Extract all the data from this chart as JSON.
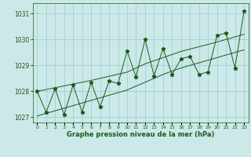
{
  "hours": [
    0,
    1,
    2,
    3,
    4,
    5,
    6,
    7,
    8,
    9,
    10,
    11,
    12,
    13,
    14,
    15,
    16,
    17,
    18,
    19,
    20,
    21,
    22,
    23
  ],
  "pressure": [
    1028.0,
    1027.2,
    1028.1,
    1027.1,
    1028.25,
    1027.2,
    1028.35,
    1027.4,
    1028.4,
    1028.3,
    1029.55,
    1028.55,
    1030.0,
    1028.6,
    1029.65,
    1028.65,
    1029.25,
    1029.35,
    1028.65,
    1028.75,
    1030.15,
    1030.25,
    1028.9,
    1031.1
  ],
  "line_upper": [
    1028.0,
    1028.07,
    1028.14,
    1028.21,
    1028.28,
    1028.35,
    1028.42,
    1028.5,
    1028.58,
    1028.66,
    1028.74,
    1028.9,
    1029.06,
    1029.18,
    1029.3,
    1029.42,
    1029.54,
    1029.63,
    1029.72,
    1029.81,
    1029.9,
    1030.0,
    1030.1,
    1030.2
  ],
  "line_lower": [
    1027.05,
    1027.15,
    1027.25,
    1027.35,
    1027.45,
    1027.55,
    1027.65,
    1027.75,
    1027.85,
    1027.95,
    1028.05,
    1028.2,
    1028.35,
    1028.5,
    1028.65,
    1028.78,
    1028.9,
    1029.0,
    1029.1,
    1029.2,
    1029.3,
    1029.4,
    1029.5,
    1029.6
  ],
  "ylim": [
    1026.8,
    1031.4
  ],
  "yticks": [
    1027,
    1028,
    1029,
    1030,
    1031
  ],
  "bg_color": "#cce8e8",
  "line_color": "#1a5c1a",
  "grid_color": "#99cccc",
  "xlabel": "Graphe pression niveau de la mer (hPa)"
}
